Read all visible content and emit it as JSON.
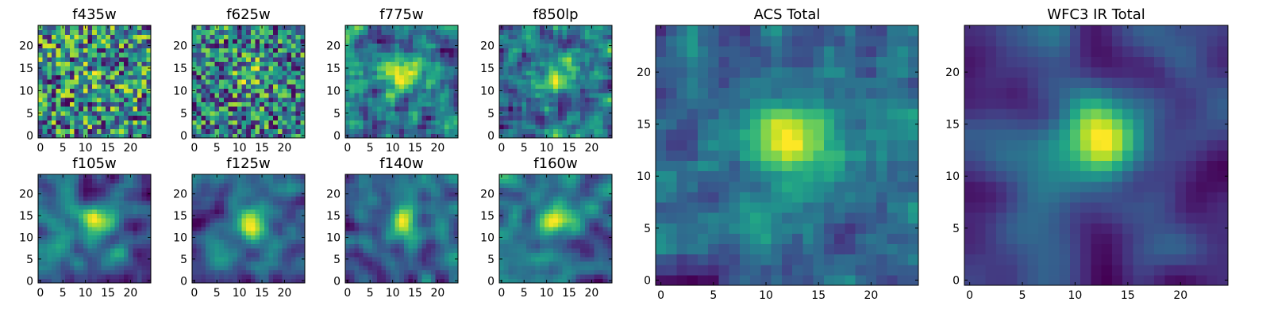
{
  "chart_data": [
    {
      "type": "heatmap",
      "title": "f435w",
      "rows": 25,
      "cols": 25,
      "xlim": [
        -0.5,
        24.5
      ],
      "ylim": [
        -0.5,
        24.5
      ],
      "xticks": [
        0,
        5,
        10,
        15,
        20
      ],
      "yticks": [
        0,
        5,
        10,
        15,
        20
      ],
      "colormap": "viridis",
      "smoothness": 0.1,
      "blob": 0.1,
      "seed": 11,
      "origin": "lower"
    },
    {
      "type": "heatmap",
      "title": "f625w",
      "rows": 25,
      "cols": 25,
      "xlim": [
        -0.5,
        24.5
      ],
      "ylim": [
        -0.5,
        24.5
      ],
      "xticks": [
        0,
        5,
        10,
        15,
        20
      ],
      "yticks": [
        0,
        5,
        10,
        15,
        20
      ],
      "colormap": "viridis",
      "smoothness": 0.1,
      "blob": 0.3,
      "seed": 23,
      "origin": "lower"
    },
    {
      "type": "heatmap",
      "title": "f775w",
      "rows": 25,
      "cols": 25,
      "xlim": [
        -0.5,
        24.5
      ],
      "ylim": [
        -0.5,
        24.5
      ],
      "xticks": [
        0,
        5,
        10,
        15,
        20
      ],
      "yticks": [
        0,
        5,
        10,
        15,
        20
      ],
      "colormap": "viridis",
      "smoothness": 0.15,
      "blob": 0.4,
      "seed": 37,
      "origin": "lower"
    },
    {
      "type": "heatmap",
      "title": "f850lp",
      "rows": 25,
      "cols": 25,
      "xlim": [
        -0.5,
        24.5
      ],
      "ylim": [
        -0.5,
        24.5
      ],
      "xticks": [
        0,
        5,
        10,
        15,
        20
      ],
      "yticks": [
        0,
        5,
        10,
        15,
        20
      ],
      "colormap": "viridis",
      "smoothness": 0.15,
      "blob": 0.35,
      "seed": 41,
      "origin": "lower"
    },
    {
      "type": "heatmap",
      "title": "f105w",
      "rows": 25,
      "cols": 25,
      "xlim": [
        -0.5,
        24.5
      ],
      "ylim": [
        -0.5,
        24.5
      ],
      "xticks": [
        0,
        5,
        10,
        15,
        20
      ],
      "yticks": [
        0,
        5,
        10,
        15,
        20
      ],
      "colormap": "viridis",
      "smoothness": 0.55,
      "blob": 0.35,
      "seed": 53,
      "origin": "lower"
    },
    {
      "type": "heatmap",
      "title": "f125w",
      "rows": 25,
      "cols": 25,
      "xlim": [
        -0.5,
        24.5
      ],
      "ylim": [
        -0.5,
        24.5
      ],
      "xticks": [
        0,
        5,
        10,
        15,
        20
      ],
      "yticks": [
        0,
        5,
        10,
        15,
        20
      ],
      "colormap": "viridis",
      "smoothness": 0.55,
      "blob": 0.45,
      "seed": 67,
      "origin": "lower"
    },
    {
      "type": "heatmap",
      "title": "f140w",
      "rows": 25,
      "cols": 25,
      "xlim": [
        -0.5,
        24.5
      ],
      "ylim": [
        -0.5,
        24.5
      ],
      "xticks": [
        0,
        5,
        10,
        15,
        20
      ],
      "yticks": [
        0,
        5,
        10,
        15,
        20
      ],
      "colormap": "viridis",
      "smoothness": 0.55,
      "blob": 0.4,
      "seed": 79,
      "origin": "lower"
    },
    {
      "type": "heatmap",
      "title": "f160w",
      "rows": 25,
      "cols": 25,
      "xlim": [
        -0.5,
        24.5
      ],
      "ylim": [
        -0.5,
        24.5
      ],
      "xticks": [
        0,
        5,
        10,
        15,
        20
      ],
      "yticks": [
        0,
        5,
        10,
        15,
        20
      ],
      "colormap": "viridis",
      "smoothness": 0.55,
      "blob": 0.45,
      "seed": 83,
      "origin": "lower"
    },
    {
      "type": "heatmap",
      "title": "ACS Total",
      "rows": 25,
      "cols": 25,
      "xlim": [
        -0.5,
        24.5
      ],
      "ylim": [
        -0.5,
        24.5
      ],
      "xticks": [
        0,
        5,
        10,
        15,
        20
      ],
      "yticks": [
        0,
        5,
        10,
        15,
        20
      ],
      "colormap": "viridis",
      "smoothness": 0.3,
      "blob": 0.75,
      "seed": 97,
      "origin": "lower"
    },
    {
      "type": "heatmap",
      "title": "WFC3 IR Total",
      "rows": 25,
      "cols": 25,
      "xlim": [
        -0.5,
        24.5
      ],
      "ylim": [
        -0.5,
        24.5
      ],
      "xticks": [
        0,
        5,
        10,
        15,
        20
      ],
      "yticks": [
        0,
        5,
        10,
        15,
        20
      ],
      "colormap": "viridis",
      "smoothness": 0.65,
      "blob": 0.7,
      "seed": 101,
      "origin": "lower"
    }
  ]
}
